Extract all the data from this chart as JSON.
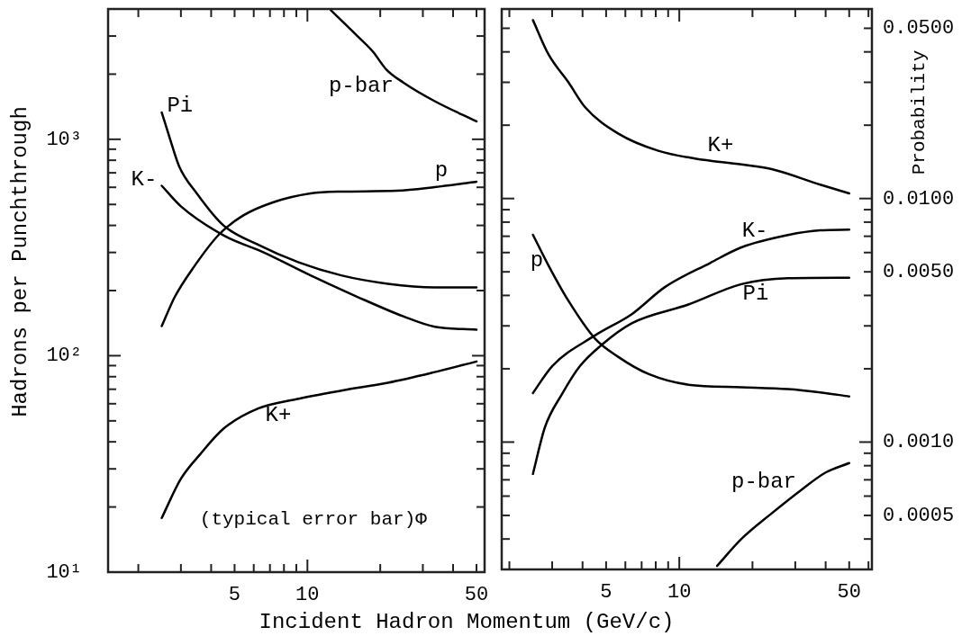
{
  "chart_data": [
    {
      "type": "line",
      "xlabel": "Incident Hadron Momentum (GeV/c)",
      "ylabel": "Hadrons per Punchthrough",
      "log": "xy",
      "marker": "none",
      "line_style": "solid",
      "legend": false,
      "xlim": [
        1.5,
        54
      ],
      "ylim": [
        10,
        4000
      ],
      "xticks": [
        {
          "value": 2,
          "label": null
        },
        {
          "value": 3,
          "label": null
        },
        {
          "value": 4,
          "label": null
        },
        5,
        {
          "value": 6,
          "label": null
        },
        {
          "value": 7,
          "label": null
        },
        {
          "value": 8,
          "label": null
        },
        {
          "value": 9,
          "label": null
        },
        10,
        {
          "value": 20,
          "label": null
        },
        {
          "value": 30,
          "label": null
        },
        {
          "value": 40,
          "label": null
        },
        50
      ],
      "yticks": [
        {
          "value": 10,
          "label": "10¹"
        },
        {
          "value": 20,
          "label": null
        },
        {
          "value": 30,
          "label": null
        },
        {
          "value": 40,
          "label": null
        },
        {
          "value": 50,
          "label": null
        },
        {
          "value": 60,
          "label": null
        },
        {
          "value": 70,
          "label": null
        },
        {
          "value": 80,
          "label": null
        },
        {
          "value": 90,
          "label": null
        },
        {
          "value": 100,
          "label": "10²"
        },
        {
          "value": 200,
          "label": null
        },
        {
          "value": 300,
          "label": null
        },
        {
          "value": 400,
          "label": null
        },
        {
          "value": 500,
          "label": null
        },
        {
          "value": 600,
          "label": null
        },
        {
          "value": 700,
          "label": null
        },
        {
          "value": 800,
          "label": null
        },
        {
          "value": 900,
          "label": null
        },
        {
          "value": 1000,
          "label": "10³"
        },
        {
          "value": 2000,
          "label": null
        },
        {
          "value": 3000,
          "label": null
        }
      ],
      "series": [
        {
          "name": "p-bar",
          "color": "#000000",
          "x": [
            12.5,
            16.1,
            18.6,
            21.2,
            24.9,
            33.6,
            50
          ],
          "values": [
            3950,
            3000,
            2550,
            2100,
            1830,
            1500,
            1210
          ]
        },
        {
          "name": "Pi",
          "color": "#000000",
          "x": [
            2.5,
            2.7,
            2.95,
            3.5,
            4.5,
            6.1,
            9.2,
            13.8,
            21.5,
            33.6,
            50
          ],
          "values": [
            1330,
            1010,
            750,
            560,
            400,
            330,
            270,
            235,
            215,
            207,
            207
          ]
        },
        {
          "name": "p",
          "color": "#000000",
          "x": [
            2.5,
            2.83,
            3.4,
            4.3,
            5.4,
            7.2,
            10.3,
            13.8,
            23.4,
            33.6,
            50
          ],
          "values": [
            137,
            187,
            258,
            362,
            443,
            511,
            562,
            573,
            578,
            601,
            637
          ]
        },
        {
          "name": "K-",
          "color": "#000000",
          "x": [
            2.5,
            3,
            4.5,
            6.6,
            10.3,
            16.1,
            24.9,
            33.6,
            50
          ],
          "values": [
            610,
            490,
            360,
            300,
            235,
            187,
            152,
            136,
            132
          ]
        },
        {
          "name": "K+",
          "color": "#000000",
          "x": [
            2.5,
            3,
            3.6,
            4.5,
            6.25,
            9,
            13.8,
            21.5,
            33.6,
            50
          ],
          "values": [
            17.8,
            27,
            35,
            46,
            57,
            63,
            69,
            75,
            84,
            94
          ]
        }
      ],
      "annotations": [
        "(typical error bar)Φ"
      ]
    },
    {
      "type": "line",
      "ylabel": "Probability",
      "log": "xy",
      "marker": "none",
      "line_style": "solid",
      "legend": false,
      "xlim": [
        1.86,
        62
      ],
      "ylim": [
        0.0003,
        0.06
      ],
      "xticks": [
        {
          "value": 2,
          "label": null
        },
        {
          "value": 3,
          "label": null
        },
        {
          "value": 4,
          "label": null
        },
        5,
        {
          "value": 6,
          "label": null
        },
        {
          "value": 7,
          "label": null
        },
        {
          "value": 8,
          "label": null
        },
        {
          "value": 9,
          "label": null
        },
        10,
        {
          "value": 20,
          "label": null
        },
        {
          "value": 30,
          "label": null
        },
        {
          "value": 40,
          "label": null
        },
        50,
        {
          "value": 60,
          "label": null
        }
      ],
      "yticks": [
        {
          "value": 0.0004,
          "label": null
        },
        0.0005,
        {
          "value": 0.0006,
          "label": null
        },
        {
          "value": 0.0007,
          "label": null
        },
        {
          "value": 0.0008,
          "label": null
        },
        {
          "value": 0.0009,
          "label": null
        },
        {
          "value": 0.001,
          "label": "0.0010"
        },
        {
          "value": 0.002,
          "label": null
        },
        {
          "value": 0.003,
          "label": null
        },
        {
          "value": 0.004,
          "label": null
        },
        {
          "value": 0.005,
          "label": "0.0050"
        },
        {
          "value": 0.006,
          "label": null
        },
        {
          "value": 0.007,
          "label": null
        },
        {
          "value": 0.008,
          "label": null
        },
        {
          "value": 0.009,
          "label": null
        },
        {
          "value": 0.01,
          "label": "0.0100"
        },
        {
          "value": 0.02,
          "label": null
        },
        {
          "value": 0.03,
          "label": null
        },
        {
          "value": 0.04,
          "label": null
        },
        {
          "value": 0.05,
          "label": "0.0500"
        }
      ],
      "series": [
        {
          "name": "K+",
          "color": "#000000",
          "x": [
            2.5,
            2.9,
            3.5,
            4.1,
            5.6,
            8.2,
            11.6,
            18,
            24,
            38,
            50
          ],
          "values": [
            0.054,
            0.039,
            0.03,
            0.0237,
            0.0185,
            0.0157,
            0.0146,
            0.0138,
            0.0132,
            0.0114,
            0.0105
          ]
        },
        {
          "name": "K-",
          "color": "#000000",
          "x": [
            2.5,
            3,
            4.5,
            6.4,
            8.7,
            13.4,
            18,
            28,
            38,
            50
          ],
          "values": [
            0.00159,
            0.00205,
            0.00274,
            0.00336,
            0.00432,
            0.00544,
            0.0063,
            0.00708,
            0.0074,
            0.00745
          ]
        },
        {
          "name": "Pi",
          "color": "#000000",
          "x": [
            2.5,
            2.8,
            3.3,
            3.9,
            4.8,
            6.4,
            10.9,
            18,
            28,
            50
          ],
          "values": [
            0.00074,
            0.00115,
            0.00158,
            0.00205,
            0.00251,
            0.00308,
            0.00367,
            0.00445,
            0.00471,
            0.00473
          ]
        },
        {
          "name": "p",
          "color": "#000000",
          "x": [
            2.5,
            2.9,
            3.5,
            4.5,
            5.6,
            7.5,
            10.9,
            18,
            28,
            38,
            50
          ],
          "values": [
            0.0071,
            0.0053,
            0.0038,
            0.00266,
            0.00224,
            0.0019,
            0.00172,
            0.00168,
            0.00165,
            0.0016,
            0.00154
          ]
        },
        {
          "name": "p-bar",
          "color": "#000000",
          "x": [
            14.3,
            18,
            24,
            32,
            40,
            50
          ],
          "values": [
            0.00031,
            0.0004,
            0.00051,
            0.00064,
            0.00075,
            0.00082
          ]
        }
      ]
    }
  ]
}
